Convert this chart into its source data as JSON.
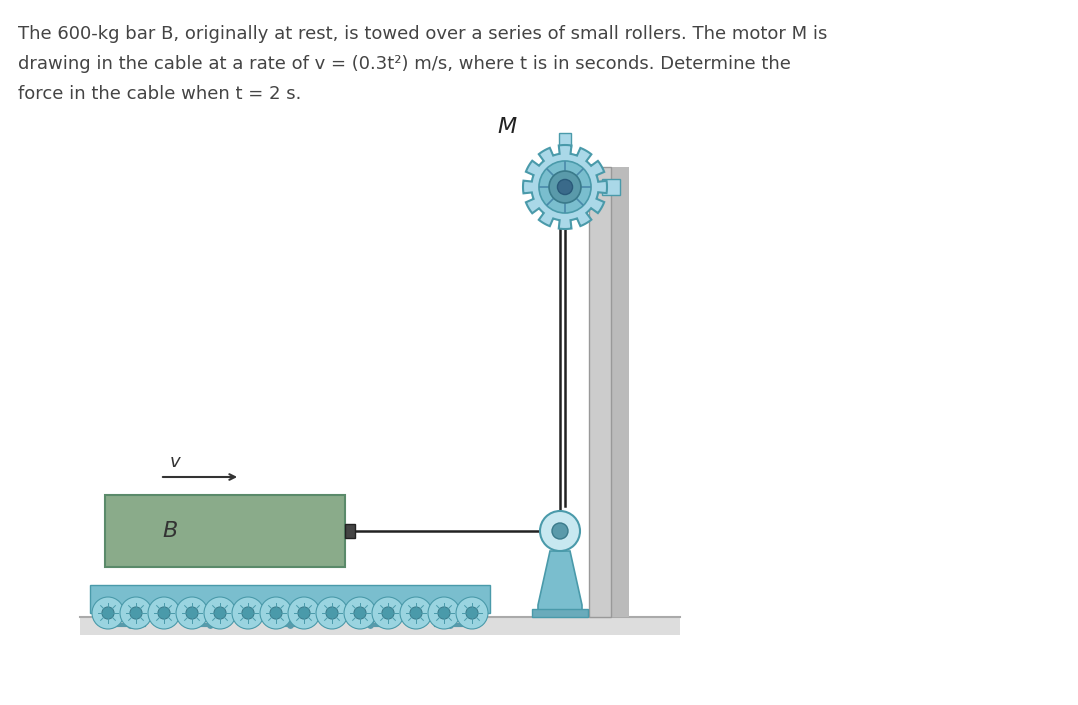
{
  "bg_color": "#ffffff",
  "text_color": "#444444",
  "problem_text_lines": [
    "The 600-kg bar B, originally at rest, is towed over a series of small rollers. The motor M is",
    "drawing in the cable at a rate of v = (0.3t²) m/s, where t is in seconds. Determine the",
    "force in the cable when t = 2 s."
  ],
  "bar_color": "#8aab8a",
  "bar_outline": "#5a8a6a",
  "roller_color": "#7abece",
  "roller_track_color": "#7abece",
  "pulley_color": "#7abece",
  "motor_color": "#7abece",
  "pole_color": "#cccccc",
  "pole_shadow": "#aaaaaa",
  "cable_color": "#222222",
  "ground_color": "#dddddd",
  "ground_line": "#aaaaaa",
  "pedestal_color": "#7abece",
  "text_fontsize": 13.0
}
